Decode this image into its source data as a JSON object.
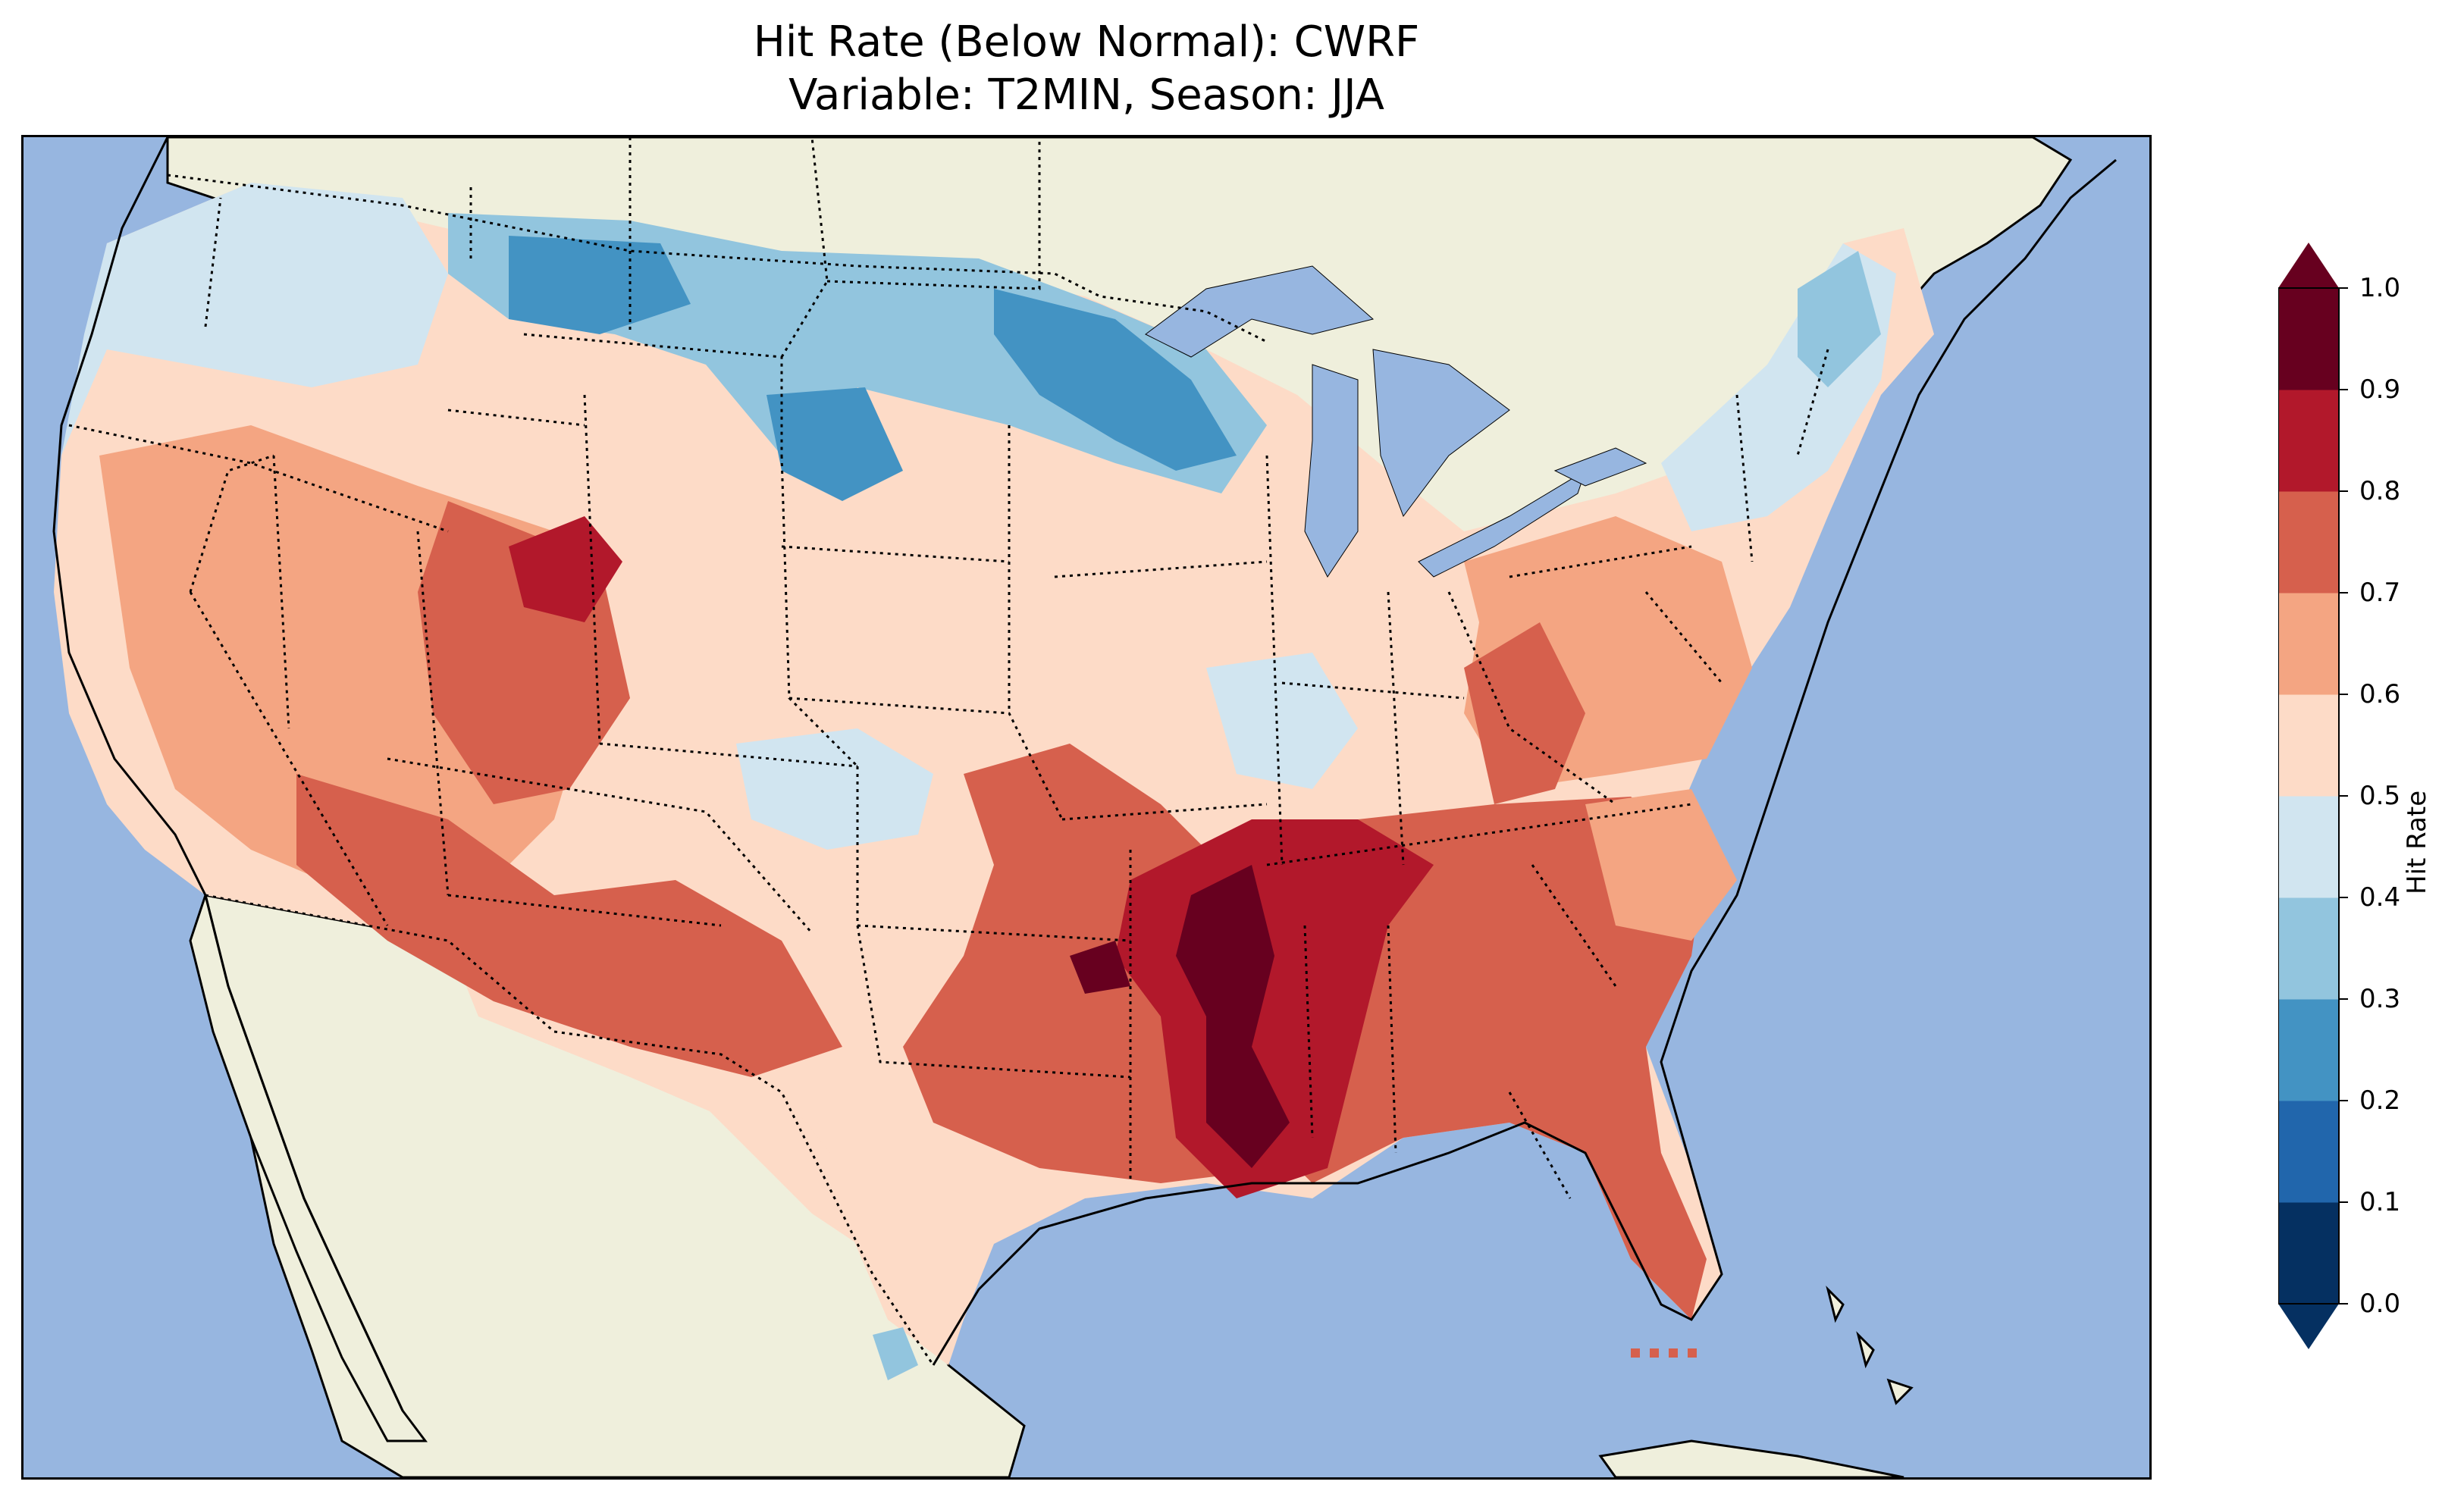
{
  "title": {
    "line1": "Hit Rate (Below Normal): CWRF",
    "line2": "Variable: T2MIN, Season: JJA"
  },
  "colors": {
    "ocean": "#97b6e0",
    "land": "#efefdc",
    "lakes": "#97b6e0"
  },
  "colorbar": {
    "label": "Hit Rate",
    "ticks": [
      "0.0",
      "0.1",
      "0.2",
      "0.3",
      "0.4",
      "0.5",
      "0.6",
      "0.7",
      "0.8",
      "0.9",
      "1.0"
    ],
    "bins": [
      {
        "range": [
          0.0,
          0.1
        ],
        "color": "#053061"
      },
      {
        "range": [
          0.1,
          0.2
        ],
        "color": "#2166ac"
      },
      {
        "range": [
          0.2,
          0.3
        ],
        "color": "#4393c3"
      },
      {
        "range": [
          0.3,
          0.4
        ],
        "color": "#92c5de"
      },
      {
        "range": [
          0.4,
          0.5
        ],
        "color": "#d1e5f0"
      },
      {
        "range": [
          0.5,
          0.6
        ],
        "color": "#fddbc7"
      },
      {
        "range": [
          0.6,
          0.7
        ],
        "color": "#f4a582"
      },
      {
        "range": [
          0.7,
          0.8
        ],
        "color": "#d6604d"
      },
      {
        "range": [
          0.8,
          0.9
        ],
        "color": "#b2182b"
      },
      {
        "range": [
          0.9,
          1.0
        ],
        "color": "#67001f"
      }
    ],
    "extend": "both"
  },
  "map": {
    "region": "Contiguous United States",
    "projection": "PlateCarree-like regional",
    "features": [
      "ocean",
      "land",
      "lakes",
      "coastlines",
      "state borders",
      "country borders"
    ],
    "regions": [
      {
        "name": "pacific-northwest",
        "value": 0.5
      },
      {
        "name": "northern-rockies",
        "value": 0.3
      },
      {
        "name": "northern-plains",
        "value": 0.35
      },
      {
        "name": "upper-midwest",
        "value": 0.3
      },
      {
        "name": "great-basin",
        "value": 0.6
      },
      {
        "name": "southwest",
        "value": 0.75
      },
      {
        "name": "southern-plains",
        "value": 0.65
      },
      {
        "name": "lower-mississippi-valley",
        "value": 0.95
      },
      {
        "name": "southeast",
        "value": 0.75
      },
      {
        "name": "mid-atlantic",
        "value": 0.65
      },
      {
        "name": "new-england",
        "value": 0.4
      },
      {
        "name": "florida",
        "value": 0.75
      }
    ]
  }
}
